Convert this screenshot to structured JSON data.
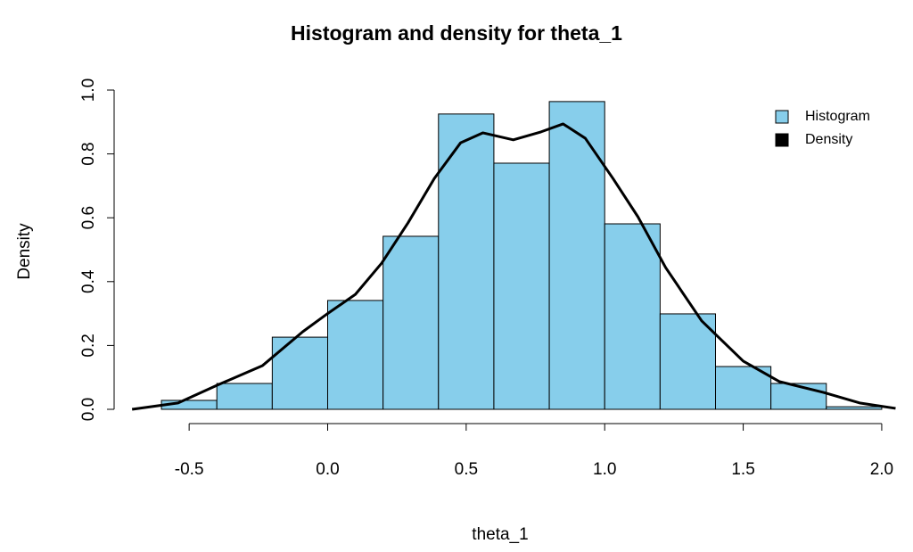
{
  "chart_data": {
    "type": "histogram",
    "title": "Histogram and density for theta_1",
    "x_label": "theta_1",
    "y_label": "Density",
    "bins": [
      -0.6,
      -0.4,
      -0.2,
      0.0,
      0.2,
      0.4,
      0.6,
      0.8,
      1.0,
      1.2,
      1.4,
      1.6,
      1.8,
      2.0
    ],
    "values": [
      0.028,
      0.081,
      0.226,
      0.341,
      0.542,
      0.925,
      0.771,
      0.964,
      0.581,
      0.299,
      0.134,
      0.081,
      0.008
    ],
    "name": "Histogram",
    "color": "#87ceeb",
    "density": {
      "name": "Density",
      "color": "#000000",
      "x": [
        -0.706,
        -0.54,
        -0.4,
        -0.235,
        -0.09,
        0.0,
        0.1,
        0.195,
        0.29,
        0.385,
        0.48,
        0.56,
        0.67,
        0.77,
        0.85,
        0.93,
        1.03,
        1.12,
        1.22,
        1.35,
        1.5,
        1.63,
        1.79,
        1.92,
        2.05
      ],
      "values": [
        0.0,
        0.02,
        0.075,
        0.137,
        0.243,
        0.3,
        0.36,
        0.458,
        0.584,
        0.723,
        0.835,
        0.866,
        0.844,
        0.869,
        0.894,
        0.849,
        0.723,
        0.603,
        0.444,
        0.277,
        0.151,
        0.087,
        0.053,
        0.02,
        0.003
      ]
    },
    "xlim": [
      -0.7,
      2.1
    ],
    "ylim": [
      0,
      1.0
    ],
    "xticks": [
      -0.5,
      {
        "value": 0,
        "label": "0.0"
      },
      0.5,
      {
        "value": 1,
        "label": "1.0"
      },
      1.5,
      {
        "value": 2,
        "label": "2.0"
      }
    ],
    "yticks": [
      {
        "value": 0,
        "label": "0.0"
      },
      0.2,
      0.4,
      0.6,
      0.8,
      {
        "value": 1,
        "label": "1.0"
      }
    ],
    "legend": "top-right"
  }
}
